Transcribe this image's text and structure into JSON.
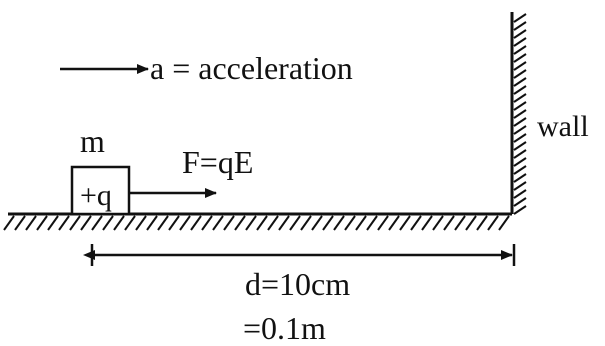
{
  "labels": {
    "acceleration": "a = acceleration",
    "mass": "m",
    "force": "F=qE",
    "charge": "+q",
    "wall": "wall",
    "distance": "d=10cm",
    "distance_m": "=0.1m"
  },
  "colors": {
    "ink": "#111111",
    "background": "#ffffff"
  }
}
